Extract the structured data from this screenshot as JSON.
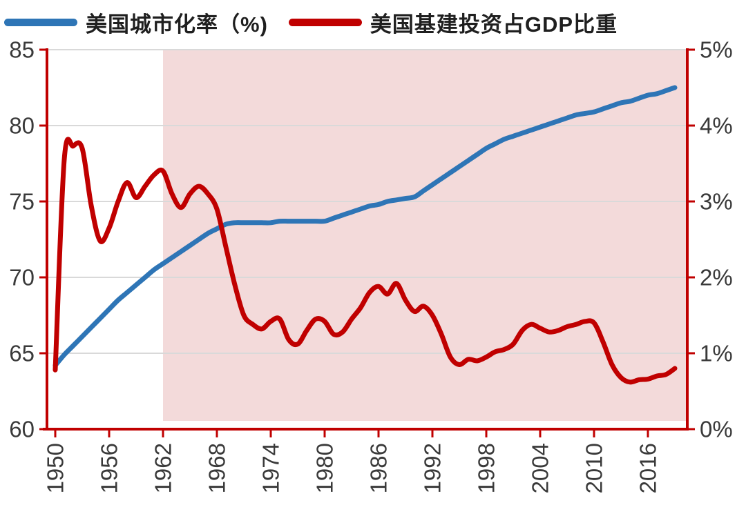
{
  "page": {
    "background": "#ffffff"
  },
  "legend": {
    "position": "top-left"
  },
  "chart_data": {
    "type": "line",
    "title": "",
    "xlabel": "",
    "ylabel_left": "",
    "ylabel_right": "",
    "legend_position": "top",
    "grid": true,
    "axis_color": "#c00000",
    "grid_color": "#d9d9d9",
    "label_color": "#3a3a3a",
    "plot_background": "#ffffff",
    "shaded_region": {
      "from_year": 1962,
      "to_year": 2020,
      "color": "#f3dada"
    },
    "left_axis": {
      "min": 60,
      "max": 85,
      "ticks": [
        60,
        65,
        70,
        75,
        80,
        85
      ],
      "labels": [
        "60",
        "65",
        "70",
        "75",
        "80",
        "85"
      ]
    },
    "right_axis": {
      "min": 0,
      "max": 5,
      "ticks": [
        0,
        1,
        2,
        3,
        4,
        5
      ],
      "labels": [
        "0%",
        "1%",
        "2%",
        "3%",
        "4%",
        "5%"
      ]
    },
    "x_axis": {
      "min": 1950,
      "max": 2020,
      "tick_years": [
        1950,
        1956,
        1962,
        1968,
        1974,
        1980,
        1986,
        1992,
        1998,
        2004,
        2010,
        2016
      ]
    },
    "x": [
      1950,
      1951,
      1952,
      1953,
      1954,
      1955,
      1956,
      1957,
      1958,
      1959,
      1960,
      1961,
      1962,
      1963,
      1964,
      1965,
      1966,
      1967,
      1968,
      1969,
      1970,
      1971,
      1972,
      1973,
      1974,
      1975,
      1976,
      1977,
      1978,
      1979,
      1980,
      1981,
      1982,
      1983,
      1984,
      1985,
      1986,
      1987,
      1988,
      1989,
      1990,
      1991,
      1992,
      1993,
      1994,
      1995,
      1996,
      1997,
      1998,
      1999,
      2000,
      2001,
      2002,
      2003,
      2004,
      2005,
      2006,
      2007,
      2008,
      2009,
      2010,
      2011,
      2012,
      2013,
      2014,
      2015,
      2016,
      2017,
      2018,
      2019
    ],
    "series": [
      {
        "name": "美国城市化率（%)",
        "axis": "left",
        "color": "#2e75b6",
        "line_width": 7,
        "values": [
          64.2,
          64.9,
          65.5,
          66.1,
          66.7,
          67.3,
          67.9,
          68.5,
          69.0,
          69.5,
          70.0,
          70.5,
          70.9,
          71.3,
          71.7,
          72.1,
          72.5,
          72.9,
          73.2,
          73.5,
          73.6,
          73.6,
          73.6,
          73.6,
          73.6,
          73.7,
          73.7,
          73.7,
          73.7,
          73.7,
          73.7,
          73.9,
          74.1,
          74.3,
          74.5,
          74.7,
          74.8,
          75.0,
          75.1,
          75.2,
          75.3,
          75.7,
          76.1,
          76.5,
          76.9,
          77.3,
          77.7,
          78.1,
          78.5,
          78.8,
          79.1,
          79.3,
          79.5,
          79.7,
          79.9,
          80.1,
          80.3,
          80.5,
          80.7,
          80.8,
          80.9,
          81.1,
          81.3,
          81.5,
          81.6,
          81.8,
          82.0,
          82.1,
          82.3,
          82.5
        ]
      },
      {
        "name": "美国基建投资占GDP比重",
        "axis": "right",
        "color": "#c00000",
        "line_width": 7,
        "values": [
          0.78,
          3.55,
          3.73,
          3.7,
          2.95,
          2.48,
          2.65,
          3.0,
          3.25,
          3.05,
          3.2,
          3.35,
          3.4,
          3.1,
          2.92,
          3.1,
          3.2,
          3.1,
          2.9,
          2.4,
          1.9,
          1.5,
          1.38,
          1.32,
          1.42,
          1.45,
          1.18,
          1.12,
          1.3,
          1.45,
          1.42,
          1.25,
          1.28,
          1.45,
          1.6,
          1.8,
          1.88,
          1.78,
          1.92,
          1.7,
          1.55,
          1.62,
          1.5,
          1.25,
          0.95,
          0.85,
          0.92,
          0.9,
          0.95,
          1.02,
          1.05,
          1.12,
          1.3,
          1.38,
          1.33,
          1.28,
          1.3,
          1.35,
          1.38,
          1.42,
          1.4,
          1.15,
          0.85,
          0.68,
          0.62,
          0.65,
          0.66,
          0.7,
          0.72,
          0.8
        ]
      }
    ]
  }
}
